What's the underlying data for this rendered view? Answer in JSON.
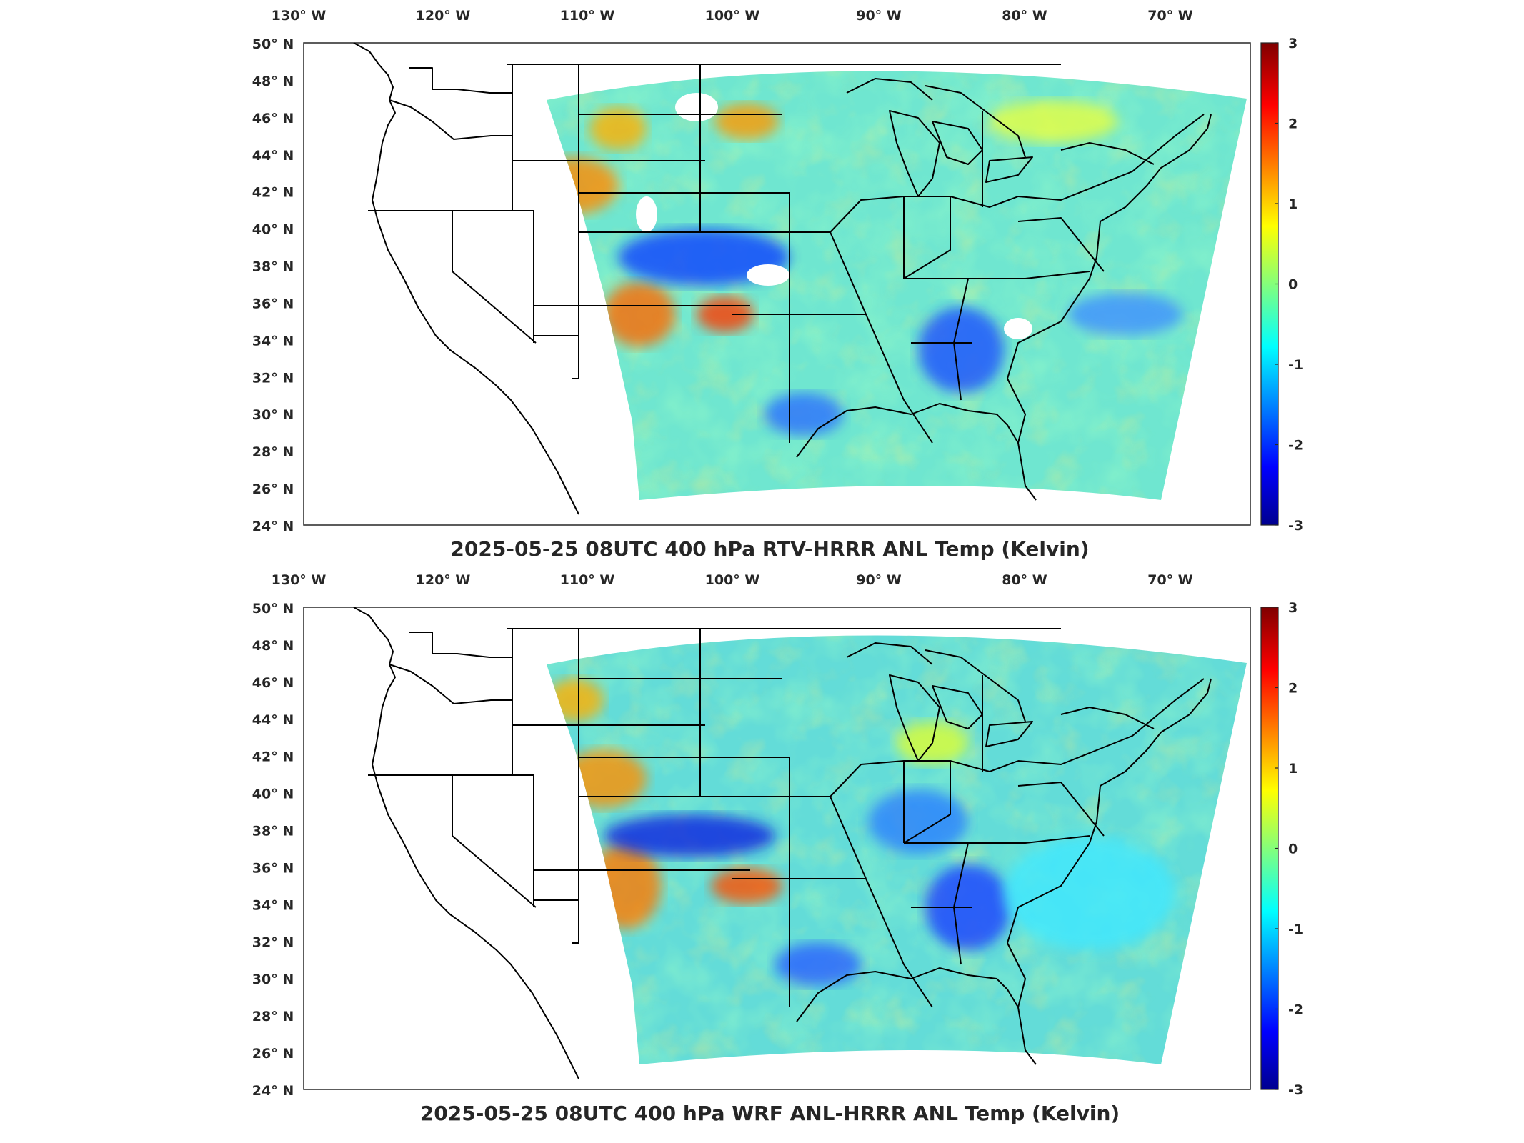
{
  "figure": {
    "panels": [
      {
        "title": "2025-05-25 08UTC 400 hPa RTV-HRRR ANL Temp (Kelvin)",
        "lon_ticks": [
          "130° W",
          "120° W",
          "110° W",
          "100° W",
          "90° W",
          "80° W",
          "70° W"
        ],
        "lat_ticks": [
          "50° N",
          "48° N",
          "46° N",
          "44° N",
          "42° N",
          "40° N",
          "38° N",
          "36° N",
          "34° N",
          "32° N",
          "30° N",
          "28° N",
          "26° N",
          "24° N"
        ],
        "colorbar_ticks": [
          "3",
          "2",
          "1",
          "0",
          "-1",
          "-2",
          "-3"
        ],
        "background_tint": "#6fe6d0"
      },
      {
        "title": "2025-05-25 08UTC 400 hPa WRF ANL-HRRR ANL Temp (Kelvin)",
        "lon_ticks": [
          "130° W",
          "120° W",
          "110° W",
          "100° W",
          "90° W",
          "80° W",
          "70° W"
        ],
        "lat_ticks": [
          "50° N",
          "48° N",
          "46° N",
          "44° N",
          "42° N",
          "40° N",
          "38° N",
          "36° N",
          "34° N",
          "32° N",
          "30° N",
          "28° N",
          "26° N",
          "24° N"
        ],
        "colorbar_ticks": [
          "3",
          "2",
          "1",
          "0",
          "-1",
          "-2",
          "-3"
        ],
        "background_tint": "#63dcd8"
      }
    ],
    "colormap": "jet",
    "colors": {
      "jet_stops": [
        "#00008f",
        "#0000ff",
        "#00ffff",
        "#ffff00",
        "#ff0000",
        "#800000"
      ],
      "border": "#000000",
      "text": "#262626"
    }
  }
}
